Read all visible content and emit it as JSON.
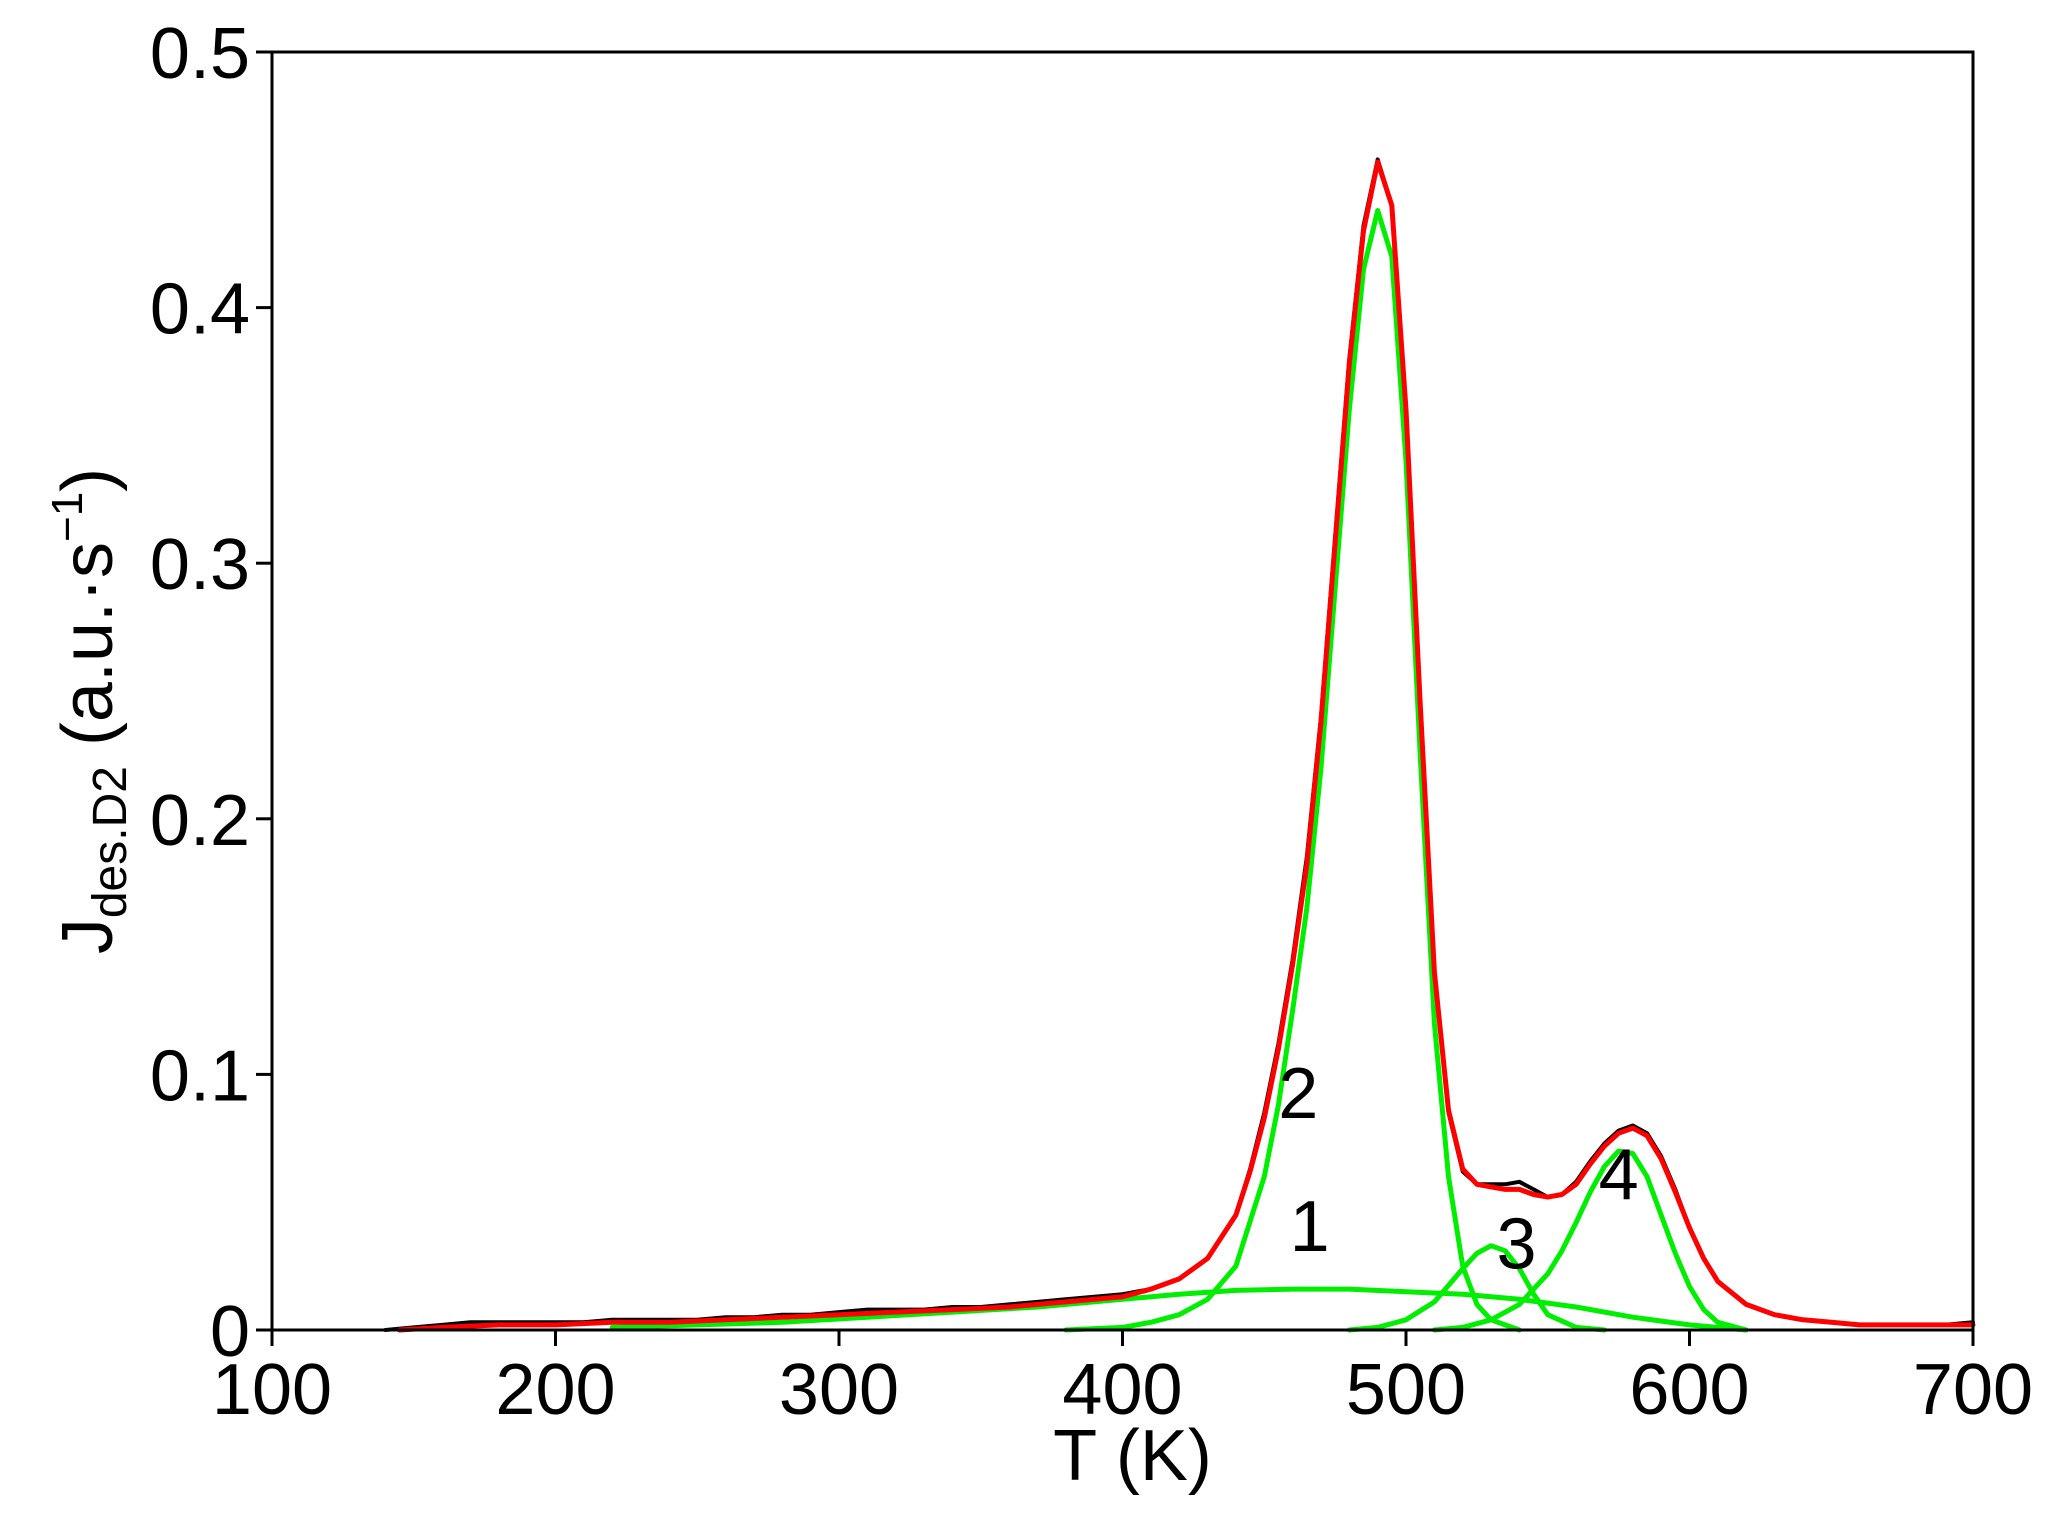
{
  "chart_data": {
    "type": "line",
    "title": "",
    "xlabel": "T (K)",
    "ylabel": {
      "main": "J",
      "subscript": "des.D2",
      "unit_prefix": " (a.u.·s",
      "unit_sup": "−1",
      "unit_suffix": ")"
    },
    "xlim": [
      100,
      700
    ],
    "ylim": [
      0,
      0.5
    ],
    "x_ticks": [
      100,
      200,
      300,
      400,
      500,
      600,
      700
    ],
    "y_ticks": [
      0,
      0.1,
      0.2,
      0.3,
      0.4,
      0.5
    ],
    "x_tick_labels": [
      "100",
      "200",
      "300",
      "400",
      "500",
      "600",
      "700"
    ],
    "y_tick_labels": [
      "0",
      "0.1",
      "0.2",
      "0.3",
      "0.4",
      "0.5"
    ],
    "grid": false,
    "legend": "none",
    "colors": {
      "experimental": "#000000",
      "fit_total": "#ff0000",
      "components": "#00ee00"
    },
    "series": [
      {
        "role": "experimental",
        "x": [
          140,
          150,
          160,
          170,
          180,
          190,
          200,
          210,
          220,
          230,
          240,
          250,
          260,
          270,
          280,
          290,
          300,
          310,
          320,
          330,
          340,
          350,
          360,
          370,
          380,
          390,
          400,
          410,
          420,
          430,
          440,
          445,
          450,
          455,
          460,
          465,
          470,
          475,
          480,
          485,
          490,
          495,
          500,
          505,
          510,
          515,
          520,
          525,
          530,
          535,
          540,
          545,
          550,
          555,
          560,
          565,
          570,
          575,
          580,
          585,
          590,
          595,
          600,
          605,
          610,
          620,
          630,
          640,
          650,
          660,
          670,
          680,
          690,
          700
        ],
        "y": [
          0.0,
          0.001,
          0.002,
          0.003,
          0.003,
          0.003,
          0.003,
          0.003,
          0.004,
          0.004,
          0.004,
          0.004,
          0.005,
          0.005,
          0.006,
          0.006,
          0.007,
          0.008,
          0.008,
          0.008,
          0.009,
          0.009,
          0.01,
          0.011,
          0.012,
          0.013,
          0.014,
          0.016,
          0.02,
          0.028,
          0.045,
          0.063,
          0.085,
          0.112,
          0.145,
          0.185,
          0.24,
          0.31,
          0.38,
          0.432,
          0.458,
          0.44,
          0.36,
          0.245,
          0.14,
          0.085,
          0.062,
          0.057,
          0.057,
          0.057,
          0.058,
          0.055,
          0.052,
          0.053,
          0.058,
          0.066,
          0.073,
          0.078,
          0.08,
          0.077,
          0.068,
          0.055,
          0.04,
          0.028,
          0.019,
          0.01,
          0.006,
          0.004,
          0.003,
          0.002,
          0.002,
          0.002,
          0.002,
          0.003
        ]
      },
      {
        "role": "fit_total",
        "x": [
          145,
          160,
          180,
          200,
          220,
          240,
          260,
          280,
          300,
          320,
          340,
          360,
          380,
          400,
          410,
          420,
          430,
          440,
          445,
          450,
          455,
          460,
          465,
          470,
          475,
          480,
          485,
          490,
          495,
          500,
          505,
          510,
          515,
          520,
          525,
          530,
          535,
          540,
          545,
          550,
          555,
          560,
          565,
          570,
          575,
          580,
          585,
          590,
          595,
          600,
          605,
          610,
          620,
          630,
          640,
          650,
          660,
          670,
          680,
          690,
          700
        ],
        "y": [
          0.0,
          0.001,
          0.002,
          0.002,
          0.003,
          0.003,
          0.004,
          0.005,
          0.006,
          0.007,
          0.008,
          0.009,
          0.011,
          0.013,
          0.016,
          0.02,
          0.028,
          0.045,
          0.062,
          0.083,
          0.11,
          0.143,
          0.182,
          0.238,
          0.308,
          0.378,
          0.43,
          0.457,
          0.44,
          0.36,
          0.245,
          0.14,
          0.086,
          0.063,
          0.057,
          0.056,
          0.055,
          0.055,
          0.053,
          0.052,
          0.053,
          0.057,
          0.065,
          0.072,
          0.077,
          0.079,
          0.076,
          0.067,
          0.054,
          0.04,
          0.028,
          0.019,
          0.01,
          0.006,
          0.004,
          0.003,
          0.002,
          0.002,
          0.002,
          0.002,
          0.002
        ]
      },
      {
        "role": "component",
        "name": "1",
        "x": [
          220,
          250,
          280,
          310,
          340,
          370,
          400,
          420,
          440,
          460,
          480,
          500,
          520,
          540,
          560,
          580,
          600,
          620
        ],
        "y": [
          0.001,
          0.002,
          0.003,
          0.005,
          0.007,
          0.009,
          0.012,
          0.014,
          0.0155,
          0.016,
          0.016,
          0.015,
          0.014,
          0.012,
          0.009,
          0.005,
          0.002,
          0.0
        ]
      },
      {
        "role": "component",
        "name": "2",
        "x": [
          380,
          400,
          410,
          420,
          430,
          440,
          450,
          455,
          460,
          465,
          470,
          475,
          480,
          485,
          490,
          495,
          500,
          505,
          510,
          515,
          520,
          525,
          530,
          540
        ],
        "y": [
          0.0,
          0.001,
          0.003,
          0.006,
          0.012,
          0.025,
          0.06,
          0.088,
          0.125,
          0.165,
          0.22,
          0.29,
          0.36,
          0.415,
          0.438,
          0.42,
          0.34,
          0.225,
          0.12,
          0.06,
          0.025,
          0.01,
          0.004,
          0.0
        ]
      },
      {
        "role": "component",
        "name": "3",
        "x": [
          480,
          490,
          500,
          510,
          520,
          525,
          530,
          535,
          540,
          545,
          550,
          560,
          570
        ],
        "y": [
          0.0,
          0.001,
          0.004,
          0.011,
          0.024,
          0.03,
          0.033,
          0.031,
          0.024,
          0.014,
          0.006,
          0.001,
          0.0
        ]
      },
      {
        "role": "component",
        "name": "4",
        "x": [
          510,
          520,
          530,
          540,
          550,
          555,
          560,
          565,
          570,
          575,
          580,
          585,
          590,
          595,
          600,
          605,
          610,
          620
        ],
        "y": [
          0.0,
          0.001,
          0.004,
          0.01,
          0.022,
          0.031,
          0.042,
          0.054,
          0.064,
          0.07,
          0.069,
          0.06,
          0.045,
          0.03,
          0.017,
          0.008,
          0.003,
          0.0
        ]
      }
    ],
    "annotations": [
      {
        "text": "2",
        "x": 462,
        "y": 0.083
      },
      {
        "text": "1",
        "x": 466,
        "y": 0.031
      },
      {
        "text": "3",
        "x": 539,
        "y": 0.024
      },
      {
        "text": "4",
        "x": 575,
        "y": 0.051
      }
    ]
  }
}
